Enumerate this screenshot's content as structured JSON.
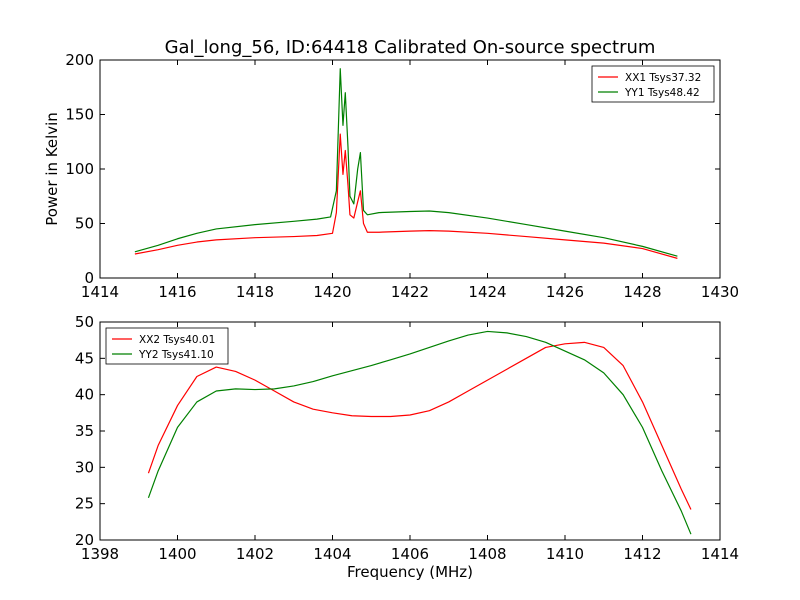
{
  "figure": {
    "title": "Gal_long_56, ID:64418 Calibrated On-source spectrum",
    "xlabel": "Frequency (MHz)"
  },
  "chart_data": [
    {
      "type": "line",
      "title": "Gal_long_56, ID:64418 Calibrated On-source spectrum",
      "xlabel": "",
      "ylabel": "Power in Kelvin",
      "xlim": [
        1414,
        1430
      ],
      "ylim": [
        0,
        200
      ],
      "xticks": [
        1414,
        1416,
        1418,
        1420,
        1422,
        1424,
        1426,
        1428,
        1430
      ],
      "yticks": [
        0,
        50,
        100,
        150,
        200
      ],
      "grid": false,
      "legend_position": "top-right",
      "series": [
        {
          "name": "XX1 Tsys37.32",
          "color": "#ff0000",
          "x": [
            1414.9,
            1415.5,
            1416.0,
            1416.5,
            1417.0,
            1418.0,
            1419.0,
            1419.6,
            1420.0,
            1420.1,
            1420.2,
            1420.27,
            1420.33,
            1420.4,
            1420.45,
            1420.55,
            1420.65,
            1420.72,
            1420.8,
            1420.9,
            1421.2,
            1422.0,
            1422.5,
            1423.0,
            1424.0,
            1425.0,
            1426.0,
            1427.0,
            1428.0,
            1428.9
          ],
          "y": [
            22,
            26,
            30,
            33,
            35,
            37,
            38,
            39,
            41,
            60,
            132,
            95,
            117,
            85,
            58,
            55,
            70,
            80,
            50,
            42,
            42,
            43,
            43.5,
            43,
            41,
            38,
            35,
            32,
            27,
            18
          ]
        },
        {
          "name": "YY1 Tsys48.42",
          "color": "#008000",
          "x": [
            1414.9,
            1415.5,
            1416.0,
            1416.5,
            1417.0,
            1418.0,
            1419.0,
            1419.6,
            1419.95,
            1420.1,
            1420.2,
            1420.27,
            1420.33,
            1420.4,
            1420.45,
            1420.55,
            1420.65,
            1420.72,
            1420.8,
            1420.9,
            1421.2,
            1422.0,
            1422.5,
            1423.0,
            1424.0,
            1425.0,
            1426.0,
            1427.0,
            1428.0,
            1428.9
          ],
          "y": [
            24,
            30,
            36,
            41,
            45,
            49,
            52,
            54,
            56,
            80,
            192,
            140,
            170,
            120,
            75,
            68,
            100,
            115,
            62,
            58,
            60,
            61,
            61.5,
            60,
            55,
            49,
            43,
            37,
            29,
            20
          ]
        }
      ]
    },
    {
      "type": "line",
      "xlabel": "Frequency (MHz)",
      "ylabel": "",
      "xlim": [
        1398,
        1414
      ],
      "ylim": [
        20,
        50
      ],
      "xticks": [
        1398,
        1400,
        1402,
        1404,
        1406,
        1408,
        1410,
        1412,
        1414
      ],
      "yticks": [
        20,
        25,
        30,
        35,
        40,
        45,
        50
      ],
      "grid": false,
      "legend_position": "top-left",
      "series": [
        {
          "name": "XX2 Tsys40.01",
          "color": "#ff0000",
          "x": [
            1399.25,
            1399.5,
            1400.0,
            1400.5,
            1401.0,
            1401.5,
            1402.0,
            1402.5,
            1403.0,
            1403.5,
            1404.0,
            1404.5,
            1405.0,
            1405.5,
            1406.0,
            1406.5,
            1407.0,
            1407.5,
            1408.0,
            1408.5,
            1409.0,
            1409.5,
            1410.0,
            1410.5,
            1411.0,
            1411.5,
            1412.0,
            1412.5,
            1413.0,
            1413.25
          ],
          "y": [
            29.2,
            33,
            38.5,
            42.5,
            43.8,
            43.2,
            42,
            40.5,
            39,
            38,
            37.5,
            37.1,
            37,
            37,
            37.2,
            37.8,
            39,
            40.5,
            42,
            43.5,
            45,
            46.5,
            47,
            47.2,
            46.5,
            44,
            39,
            33,
            27,
            24.2
          ]
        },
        {
          "name": "YY2 Tsys41.10",
          "color": "#008000",
          "x": [
            1399.25,
            1399.5,
            1400.0,
            1400.5,
            1401.0,
            1401.5,
            1402.0,
            1402.5,
            1403.0,
            1403.5,
            1404.0,
            1404.5,
            1405.0,
            1405.5,
            1406.0,
            1406.5,
            1407.0,
            1407.5,
            1408.0,
            1408.5,
            1409.0,
            1409.5,
            1410.0,
            1410.5,
            1411.0,
            1411.5,
            1412.0,
            1412.5,
            1413.0,
            1413.25
          ],
          "y": [
            25.8,
            29.5,
            35.5,
            39,
            40.5,
            40.8,
            40.7,
            40.8,
            41.2,
            41.8,
            42.6,
            43.3,
            44,
            44.8,
            45.6,
            46.5,
            47.4,
            48.2,
            48.7,
            48.5,
            48,
            47.2,
            46,
            44.8,
            43,
            40,
            35.5,
            29.5,
            24,
            20.8
          ]
        }
      ]
    }
  ]
}
